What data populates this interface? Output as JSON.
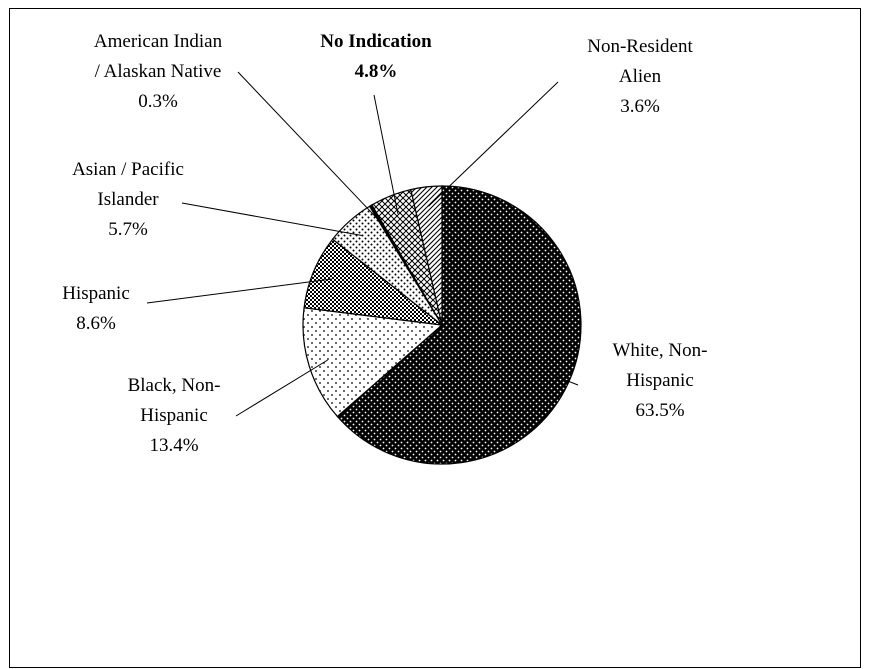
{
  "chart_data": {
    "type": "pie",
    "title": "",
    "slices": [
      {
        "key": "white",
        "name": [
          "White, Non-",
          "Hispanic"
        ],
        "value": 63.5,
        "value_label": "63.5%",
        "pattern": "dots-dark",
        "bold": false
      },
      {
        "key": "black",
        "name": [
          "Black, Non-",
          "Hispanic"
        ],
        "value": 13.4,
        "value_label": "13.4%",
        "pattern": "dots-light",
        "bold": false
      },
      {
        "key": "hispanic",
        "name": [
          "Hispanic"
        ],
        "value": 8.6,
        "value_label": "8.6%",
        "pattern": "checker",
        "bold": false
      },
      {
        "key": "asian",
        "name": [
          "Asian / Pacific",
          "Islander"
        ],
        "value": 5.7,
        "value_label": "5.7%",
        "pattern": "sparse-dots",
        "bold": false
      },
      {
        "key": "amerind",
        "name": [
          "American Indian",
          "/ Alaskan Native"
        ],
        "value": 0.3,
        "value_label": "0.3%",
        "pattern": "solid",
        "bold": false
      },
      {
        "key": "noind",
        "name": [
          "No Indication"
        ],
        "value": 4.8,
        "value_label": "4.8%",
        "pattern": "crosshatch",
        "bold": true
      },
      {
        "key": "nonres",
        "name": [
          "Non-Resident",
          "Alien"
        ],
        "value": 3.6,
        "value_label": "3.6%",
        "pattern": "diagonal",
        "bold": false
      }
    ],
    "start_angle": "12 o'clock",
    "direction": "clockwise",
    "legend": "none (leader-line labels)"
  }
}
